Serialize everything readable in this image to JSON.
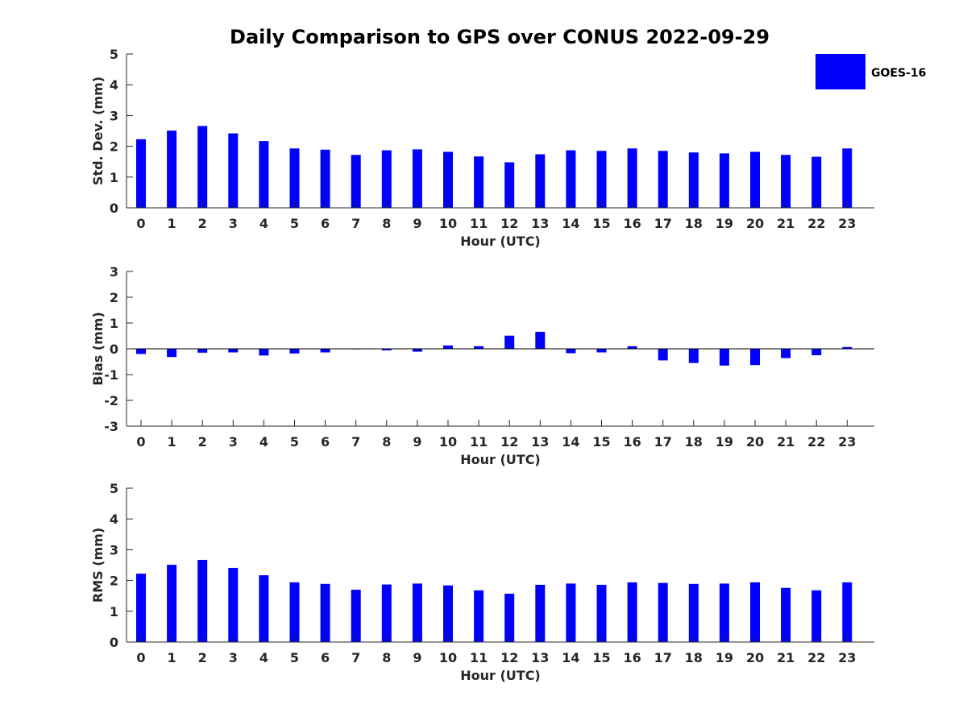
{
  "figure": {
    "title": "Daily Comparison to GPS over CONUS 2022-09-29",
    "legend": {
      "label": "GOES-16",
      "color": "#0000ff",
      "placement": "top-right"
    }
  },
  "chart_data": [
    {
      "type": "bar",
      "ylabel": "Std. Dev. (mm)",
      "xlabel": "Hour (UTC)",
      "ylim": [
        0,
        5
      ],
      "yticks": [
        "0",
        "1",
        "2",
        "3",
        "4",
        "5"
      ],
      "categories": [
        "0",
        "1",
        "2",
        "3",
        "4",
        "5",
        "6",
        "7",
        "8",
        "9",
        "10",
        "11",
        "12",
        "13",
        "14",
        "15",
        "16",
        "17",
        "18",
        "19",
        "20",
        "21",
        "22",
        "23"
      ],
      "series": [
        {
          "name": "GOES-16",
          "color": "#0000ff",
          "values": [
            2.23,
            2.51,
            2.66,
            2.42,
            2.17,
            1.93,
            1.89,
            1.72,
            1.87,
            1.9,
            1.82,
            1.67,
            1.48,
            1.74,
            1.87,
            1.85,
            1.93,
            1.85,
            1.8,
            1.77,
            1.82,
            1.72,
            1.66,
            1.93
          ]
        }
      ]
    },
    {
      "type": "bar",
      "ylabel": "Bias (mm)",
      "xlabel": "Hour (UTC)",
      "ylim": [
        -3,
        3
      ],
      "yticks": [
        "-3",
        "-2",
        "-1",
        "0",
        "1",
        "2",
        "3"
      ],
      "categories": [
        "0",
        "1",
        "2",
        "3",
        "4",
        "5",
        "6",
        "7",
        "8",
        "9",
        "10",
        "11",
        "12",
        "13",
        "14",
        "15",
        "16",
        "17",
        "18",
        "19",
        "20",
        "21",
        "22",
        "23"
      ],
      "series": [
        {
          "name": "GOES-16",
          "color": "#0000ff",
          "values": [
            -0.2,
            -0.32,
            -0.15,
            -0.14,
            -0.26,
            -0.18,
            -0.14,
            -0.02,
            -0.06,
            -0.11,
            0.13,
            0.1,
            0.51,
            0.66,
            -0.17,
            -0.14,
            0.1,
            -0.45,
            -0.55,
            -0.65,
            -0.63,
            -0.36,
            -0.25,
            0.07
          ]
        }
      ]
    },
    {
      "type": "bar",
      "ylabel": "RMS (mm)",
      "xlabel": "Hour (UTC)",
      "ylim": [
        0,
        5
      ],
      "yticks": [
        "0",
        "1",
        "2",
        "3",
        "4",
        "5"
      ],
      "categories": [
        "0",
        "1",
        "2",
        "3",
        "4",
        "5",
        "6",
        "7",
        "8",
        "9",
        "10",
        "11",
        "12",
        "13",
        "14",
        "15",
        "16",
        "17",
        "18",
        "19",
        "20",
        "21",
        "22",
        "23"
      ],
      "series": [
        {
          "name": "GOES-16",
          "color": "#0000ff",
          "values": [
            2.22,
            2.51,
            2.67,
            2.41,
            2.17,
            1.94,
            1.89,
            1.7,
            1.87,
            1.9,
            1.84,
            1.68,
            1.57,
            1.86,
            1.9,
            1.86,
            1.94,
            1.92,
            1.89,
            1.9,
            1.94,
            1.76,
            1.68,
            1.94
          ]
        }
      ]
    }
  ]
}
